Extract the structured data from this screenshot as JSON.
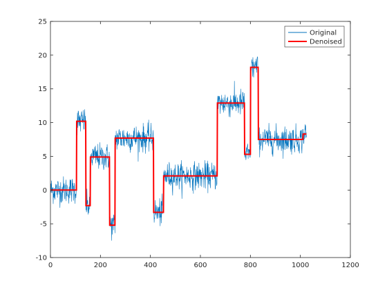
{
  "chart_data": {
    "type": "line",
    "xlim": [
      0,
      1200
    ],
    "ylim": [
      -10,
      25
    ],
    "xticks": [
      0,
      200,
      400,
      600,
      800,
      1000,
      1200
    ],
    "yticks": [
      -10,
      -5,
      0,
      5,
      10,
      15,
      20,
      25
    ],
    "xtick_labels": [
      "0",
      "200",
      "400",
      "600",
      "800",
      "1000",
      "1200"
    ],
    "ytick_labels": [
      "-10",
      "-5",
      "0",
      "5",
      "10",
      "15",
      "20",
      "25"
    ],
    "grid": false,
    "legend_position": "top-right",
    "series": [
      {
        "name": "Original",
        "color": "#0072BD",
        "noise_std": 1.0,
        "x_range": [
          1,
          1024
        ],
        "description_of_values": "noisy samples around the Denoised step levels"
      },
      {
        "name": "Denoised",
        "color": "#FF0000",
        "steps": [
          {
            "x": [
              1,
              104
            ],
            "y": 0
          },
          {
            "x": [
              105,
              141
            ],
            "y": 10.2
          },
          {
            "x": [
              142,
              159
            ],
            "y": -2.3
          },
          {
            "x": [
              160,
              236
            ],
            "y": 4.9
          },
          {
            "x": [
              237,
              258
            ],
            "y": -5.2
          },
          {
            "x": [
              259,
              412
            ],
            "y": 7.7
          },
          {
            "x": [
              413,
              452
            ],
            "y": -3.3
          },
          {
            "x": [
              453,
              667
            ],
            "y": 2.1
          },
          {
            "x": [
              668,
              776
            ],
            "y": 12.9
          },
          {
            "x": [
              777,
              800
            ],
            "y": 5.3
          },
          {
            "x": [
              801,
              831
            ],
            "y": 18.2
          },
          {
            "x": [
              832,
              1010
            ],
            "y": 7.5
          },
          {
            "x": [
              1011,
              1024
            ],
            "y": 8.3
          }
        ]
      }
    ]
  }
}
